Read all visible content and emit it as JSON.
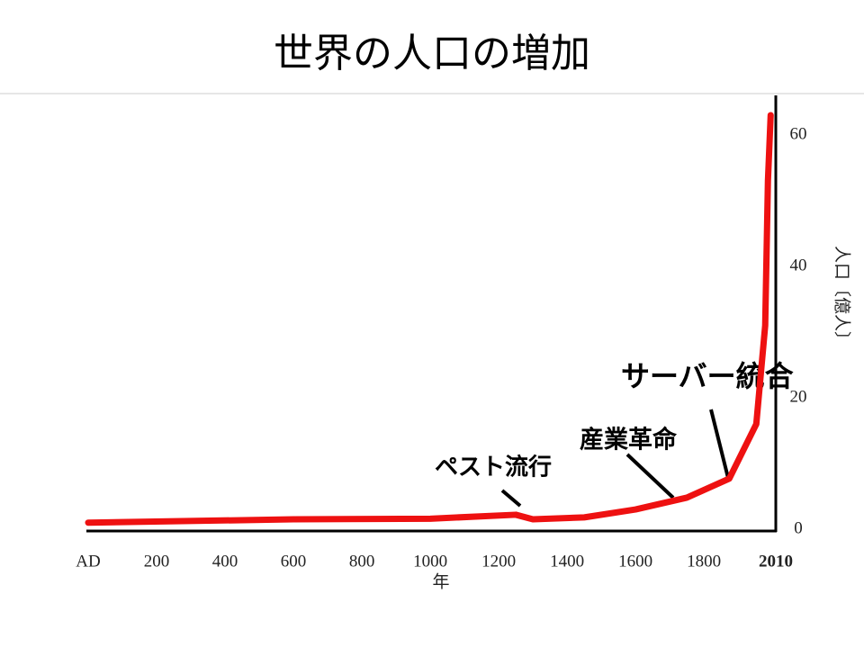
{
  "chart_data": {
    "type": "line",
    "title": "世界の人口の増加",
    "x": [
      0,
      600,
      1000,
      1250,
      1300,
      1450,
      1600,
      1750,
      1874,
      1953,
      1979,
      1987,
      1995
    ],
    "series": [
      {
        "color": "#ee1111",
        "values": [
          1,
          1.5,
          1.6,
          2.2,
          1.5,
          1.8,
          3,
          4.8,
          7.7,
          16,
          31,
          53,
          63
        ]
      }
    ],
    "xlim": [
      0,
      2010
    ],
    "xticks": [
      {
        "value": 0,
        "label": "AD"
      },
      200,
      400,
      600,
      800,
      1000,
      1200,
      1400,
      1600,
      1800,
      2010
    ],
    "ylim": [
      0,
      63
    ],
    "yticks": [
      0,
      20,
      40,
      60
    ],
    "xlabel": "年",
    "ylabel": "人口〔億人〕",
    "annotations": [
      "サーバー統合",
      "産業革命",
      "ペスト流行"
    ]
  }
}
